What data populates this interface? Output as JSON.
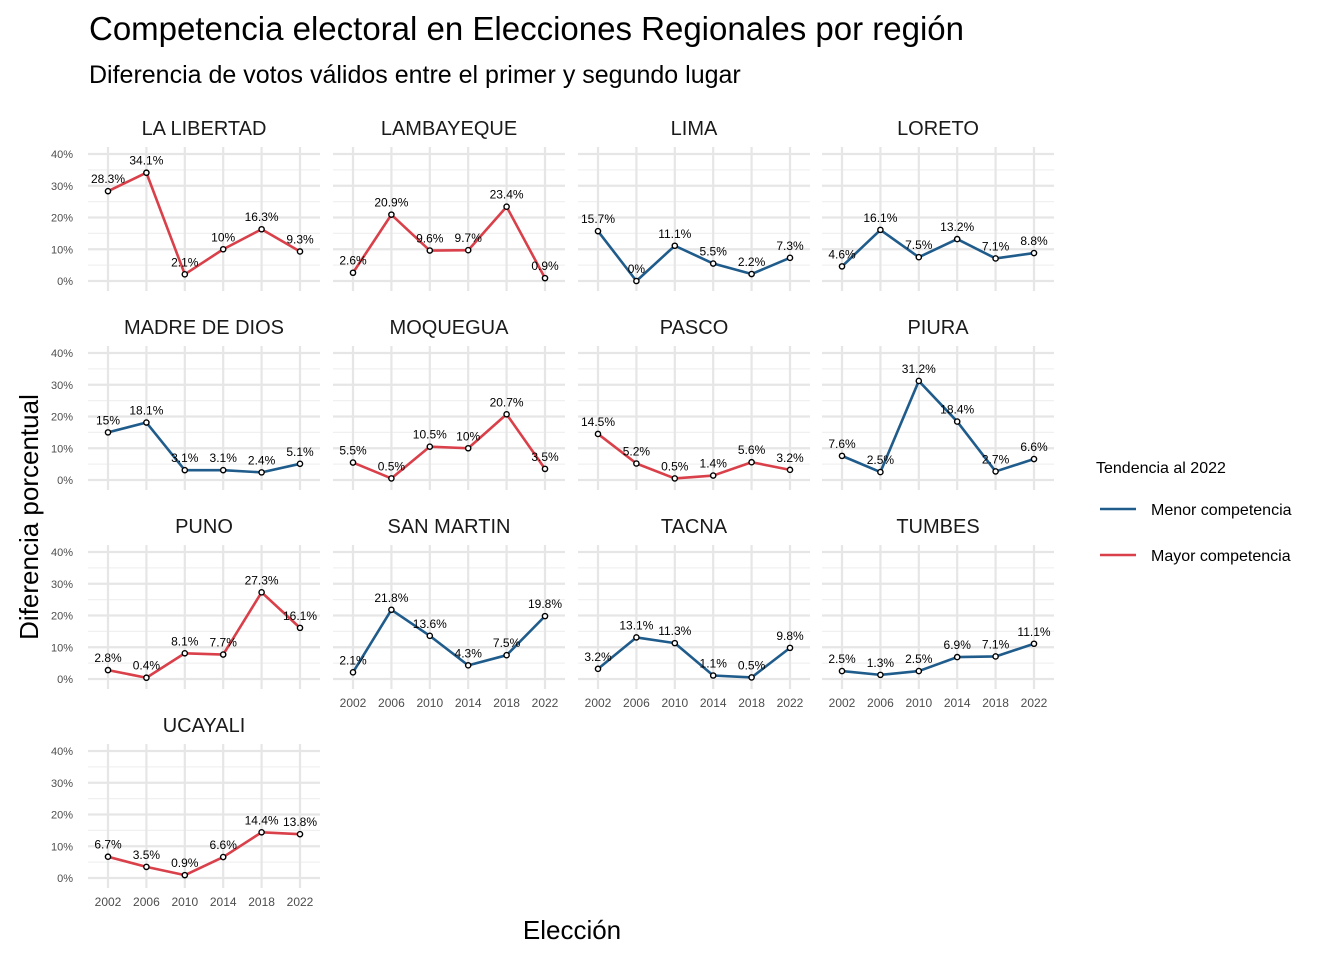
{
  "chart_data": {
    "type": "line",
    "title": "Competencia electoral en Elecciones Regionales por región",
    "subtitle": "Diferencia de votos válidos entre el primer y segundo lugar",
    "xlabel": "Elección",
    "ylabel": "Diferencia porcentual",
    "x": [
      2002,
      2006,
      2010,
      2014,
      2018,
      2022
    ],
    "x_tick_labels": [
      "2002",
      "2006",
      "2010",
      "2014",
      "2018",
      "2022"
    ],
    "ylim": [
      0,
      40
    ],
    "y_ticks": [
      0,
      10,
      20,
      30,
      40
    ],
    "y_tick_labels": [
      "0%",
      "10%",
      "20%",
      "30%",
      "40%"
    ],
    "grid": true,
    "legend": {
      "title": "Tendencia al 2022",
      "position": "right",
      "entries": [
        {
          "name": "Menor competencia",
          "color": "#1f5c8b"
        },
        {
          "name": "Mayor competencia",
          "color": "#d9404a"
        }
      ]
    },
    "panels": [
      {
        "region": "LA LIBERTAD",
        "trend": "Mayor competencia",
        "values": [
          28.3,
          34.1,
          2.1,
          10,
          16.3,
          9.3
        ],
        "labels": [
          "28.3%",
          "34.1%",
          "2.1%",
          "10%",
          "16.3%",
          "9.3%"
        ]
      },
      {
        "region": "LAMBAYEQUE",
        "trend": "Mayor competencia",
        "values": [
          2.6,
          20.9,
          9.6,
          9.7,
          23.4,
          0.9
        ],
        "labels": [
          "2.6%",
          "20.9%",
          "9.6%",
          "9.7%",
          "23.4%",
          "0.9%"
        ]
      },
      {
        "region": "LIMA",
        "trend": "Menor competencia",
        "values": [
          15.7,
          0,
          11.1,
          5.5,
          2.2,
          7.3
        ],
        "labels": [
          "15.7%",
          "0%",
          "11.1%",
          "5.5%",
          "2.2%",
          "7.3%"
        ]
      },
      {
        "region": "LORETO",
        "trend": "Menor competencia",
        "values": [
          4.6,
          16.1,
          7.5,
          13.2,
          7.1,
          8.8
        ],
        "labels": [
          "4.6%",
          "16.1%",
          "7.5%",
          "13.2%",
          "7.1%",
          "8.8%"
        ]
      },
      {
        "region": "MADRE DE DIOS",
        "trend": "Menor competencia",
        "values": [
          15,
          18.1,
          3.1,
          3.1,
          2.4,
          5.1
        ],
        "labels": [
          "15%",
          "18.1%",
          "3.1%",
          "3.1%",
          "2.4%",
          "5.1%"
        ]
      },
      {
        "region": "MOQUEGUA",
        "trend": "Mayor competencia",
        "values": [
          5.5,
          0.5,
          10.5,
          10,
          20.7,
          3.5
        ],
        "labels": [
          "5.5%",
          "0.5%",
          "10.5%",
          "10%",
          "20.7%",
          "3.5%"
        ]
      },
      {
        "region": "PASCO",
        "trend": "Mayor competencia",
        "values": [
          14.5,
          5.2,
          0.5,
          1.4,
          5.6,
          3.2
        ],
        "labels": [
          "14.5%",
          "5.2%",
          "0.5%",
          "1.4%",
          "5.6%",
          "3.2%"
        ]
      },
      {
        "region": "PIURA",
        "trend": "Menor competencia",
        "values": [
          7.6,
          2.5,
          31.2,
          18.4,
          2.7,
          6.6
        ],
        "labels": [
          "7.6%",
          "2.5%",
          "31.2%",
          "18.4%",
          "2.7%",
          "6.6%"
        ]
      },
      {
        "region": "PUNO",
        "trend": "Mayor competencia",
        "values": [
          2.8,
          0.4,
          8.1,
          7.7,
          27.3,
          16.1
        ],
        "labels": [
          "2.8%",
          "0.4%",
          "8.1%",
          "7.7%",
          "27.3%",
          "16.1%"
        ]
      },
      {
        "region": "SAN MARTIN",
        "trend": "Menor competencia",
        "values": [
          2.1,
          21.8,
          13.6,
          4.3,
          7.5,
          19.8
        ],
        "labels": [
          "2.1%",
          "21.8%",
          "13.6%",
          "4.3%",
          "7.5%",
          "19.8%"
        ]
      },
      {
        "region": "TACNA",
        "trend": "Menor competencia",
        "values": [
          3.2,
          13.1,
          11.3,
          1.1,
          0.5,
          9.8
        ],
        "labels": [
          "3.2%",
          "13.1%",
          "11.3%",
          "1.1%",
          "0.5%",
          "9.8%"
        ]
      },
      {
        "region": "TUMBES",
        "trend": "Menor competencia",
        "values": [
          2.5,
          1.3,
          2.5,
          6.9,
          7.1,
          11.1
        ],
        "labels": [
          "2.5%",
          "1.3%",
          "2.5%",
          "6.9%",
          "7.1%",
          "11.1%"
        ]
      },
      {
        "region": "UCAYALI",
        "trend": "Mayor competencia",
        "values": [
          6.7,
          3.5,
          0.9,
          6.6,
          14.4,
          13.8
        ],
        "labels": [
          "6.7%",
          "3.5%",
          "0.9%",
          "6.6%",
          "14.4%",
          "13.8%"
        ]
      }
    ]
  }
}
